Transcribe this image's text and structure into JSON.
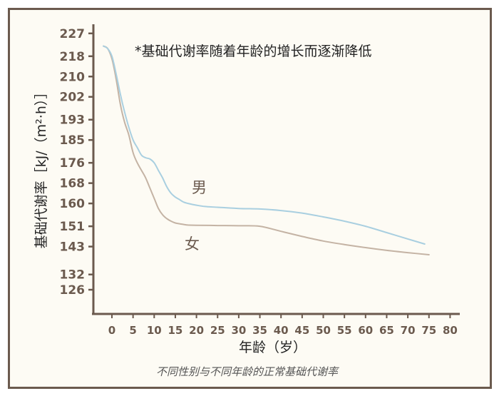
{
  "chart_data": {
    "type": "line",
    "annotation": "*基础代谢率随着年龄的增长而逐渐降低",
    "xlabel": "年龄（岁）",
    "ylabel": "基础代谢率［kJ/（m²·h）］",
    "caption": "不同性别与不同年龄的正常基础代谢率",
    "x_ticks": [
      "0",
      "5",
      "10",
      "15",
      "20",
      "25",
      "30",
      "35",
      "40",
      "45",
      "50",
      "55",
      "60",
      "65",
      "70",
      "75",
      "80"
    ],
    "y_ticks": [
      "227",
      "218",
      "210",
      "202",
      "193",
      "185",
      "176",
      "168",
      "160",
      "151",
      "143",
      "132",
      "126"
    ],
    "grid": false,
    "series": [
      {
        "name": "男",
        "color": "#a9cfe0",
        "points": [
          [
            -2,
            222
          ],
          [
            -1,
            221
          ],
          [
            0,
            218
          ],
          [
            1,
            211
          ],
          [
            2,
            203
          ],
          [
            3,
            196
          ],
          [
            4,
            190
          ],
          [
            5,
            185
          ],
          [
            6,
            182
          ],
          [
            7,
            179
          ],
          [
            8,
            178
          ],
          [
            9,
            177.5
          ],
          [
            10,
            176
          ],
          [
            11,
            173
          ],
          [
            12,
            170
          ],
          [
            13,
            166.5
          ],
          [
            14,
            164
          ],
          [
            15,
            162.5
          ],
          [
            16,
            161.5
          ],
          [
            17,
            160.5
          ],
          [
            18,
            160
          ],
          [
            20,
            159.3
          ],
          [
            22,
            158.8
          ],
          [
            25,
            158.5
          ],
          [
            30,
            158
          ],
          [
            35,
            157.8
          ],
          [
            40,
            157.2
          ],
          [
            45,
            156.2
          ],
          [
            50,
            154.7
          ],
          [
            55,
            153
          ],
          [
            60,
            151
          ],
          [
            65,
            148.5
          ],
          [
            70,
            146
          ],
          [
            74,
            144
          ]
        ]
      },
      {
        "name": "女",
        "color": "#c4b3a4",
        "points": [
          [
            -2,
            222
          ],
          [
            -1,
            221
          ],
          [
            0,
            217
          ],
          [
            1,
            209
          ],
          [
            2,
            199
          ],
          [
            3,
            192
          ],
          [
            4,
            187
          ],
          [
            5,
            180
          ],
          [
            6,
            176
          ],
          [
            7,
            173
          ],
          [
            8,
            170
          ],
          [
            9,
            166
          ],
          [
            10,
            162
          ],
          [
            11,
            158
          ],
          [
            12,
            155.5
          ],
          [
            13,
            154
          ],
          [
            14,
            153
          ],
          [
            15,
            152.3
          ],
          [
            16,
            152
          ],
          [
            17,
            151.7
          ],
          [
            18,
            151.5
          ],
          [
            20,
            151.4
          ],
          [
            25,
            151.3
          ],
          [
            30,
            151.2
          ],
          [
            35,
            151
          ],
          [
            40,
            149
          ],
          [
            45,
            147
          ],
          [
            50,
            145.2
          ],
          [
            55,
            143.8
          ],
          [
            60,
            142.6
          ],
          [
            65,
            141.5
          ],
          [
            70,
            140.6
          ],
          [
            75,
            139.8
          ]
        ]
      }
    ]
  }
}
